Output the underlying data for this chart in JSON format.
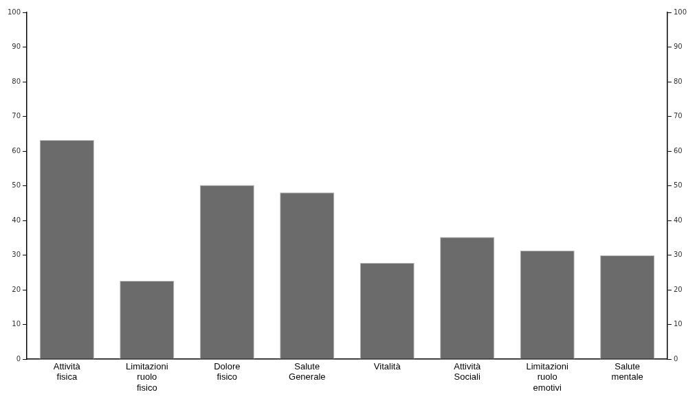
{
  "chart_data": {
    "type": "bar",
    "categories": [
      "Attività fisica",
      "Limitazioni ruolo fisico",
      "Dolore fisico",
      "Salute Generale",
      "Vitalità",
      "Attività Sociali",
      "Limitazioni ruolo emotivi",
      "Salute mentale"
    ],
    "values": [
      63.2,
      22.6,
      50.2,
      48.1,
      27.8,
      35.2,
      31.3,
      30.0
    ],
    "color": "#6b6b6b",
    "ylim": [
      0,
      100
    ],
    "yticks": [
      0,
      10,
      20,
      30,
      40,
      50,
      60,
      70,
      80,
      90,
      100
    ],
    "y2lim": [
      0,
      100
    ],
    "y2ticks": [
      0,
      10,
      20,
      30,
      40,
      50,
      60,
      70,
      80,
      90,
      100
    ],
    "grid": false,
    "legend": false
  }
}
